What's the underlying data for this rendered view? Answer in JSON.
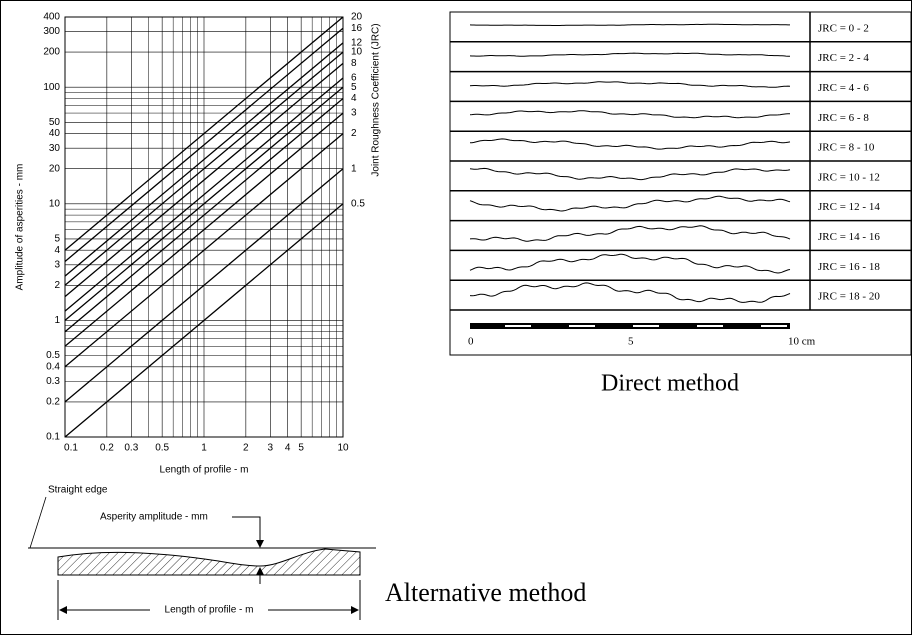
{
  "chart_data": {
    "type": "line",
    "x_label": "Length of profile - m",
    "y_label": "Amplitude of asperities - mm",
    "y2_label": "Joint Roughness Coefficient (JRC)",
    "log_x": true,
    "log_y": true,
    "grid": true,
    "color": "#000000",
    "xlim": [
      0.1,
      10
    ],
    "ylim": [
      0.1,
      400
    ],
    "xticks": [
      0.1,
      0.2,
      0.3,
      0.5,
      1,
      2,
      3,
      4,
      5,
      10
    ],
    "x_minor_ticks": [
      0.4,
      0.6,
      0.7,
      0.8,
      0.9,
      6,
      7,
      8,
      9
    ],
    "yticks": [
      0.1,
      0.2,
      0.3,
      0.4,
      0.5,
      1,
      2,
      3,
      4,
      5,
      10,
      20,
      30,
      40,
      50,
      100,
      200,
      300,
      400
    ],
    "y_minor_ticks": [
      0.6,
      0.7,
      0.8,
      0.9,
      6,
      7,
      8,
      9,
      60,
      70,
      80,
      90
    ],
    "x": [
      0.1,
      10
    ],
    "series": [
      {
        "name": "0.5",
        "values": [
          0.1,
          10
        ]
      },
      {
        "name": "1",
        "values": [
          0.2,
          20
        ]
      },
      {
        "name": "2",
        "values": [
          0.4,
          40
        ]
      },
      {
        "name": "3",
        "values": [
          0.6,
          60
        ]
      },
      {
        "name": "4",
        "values": [
          0.8,
          80
        ]
      },
      {
        "name": "5",
        "values": [
          1,
          100
        ]
      },
      {
        "name": "6",
        "values": [
          1.2,
          120
        ]
      },
      {
        "name": "8",
        "values": [
          1.6,
          160
        ]
      },
      {
        "name": "10",
        "values": [
          2,
          200
        ]
      },
      {
        "name": "12",
        "values": [
          2.4,
          240
        ]
      },
      {
        "name": "16",
        "values": [
          3.2,
          320
        ]
      },
      {
        "name": "20",
        "values": [
          4,
          400
        ]
      }
    ]
  },
  "direct_method": {
    "rows": [
      "JRC = 0 - 2",
      "JRC = 2 - 4",
      "JRC = 4 - 6",
      "JRC = 6 - 8",
      "JRC = 8 - 10",
      "JRC = 10 - 12",
      "JRC = 12 - 14",
      "JRC = 14 - 16",
      "JRC = 16 - 18",
      "JRC = 18 - 20"
    ],
    "scale_labels": [
      "0",
      "5",
      "10 cm"
    ],
    "caption": "Direct method"
  },
  "alternative_method": {
    "straight_edge": "Straight edge",
    "asperity_amplitude": "Asperity amplitude - mm",
    "length": "Length of profile - m",
    "caption": "Alternative method"
  }
}
